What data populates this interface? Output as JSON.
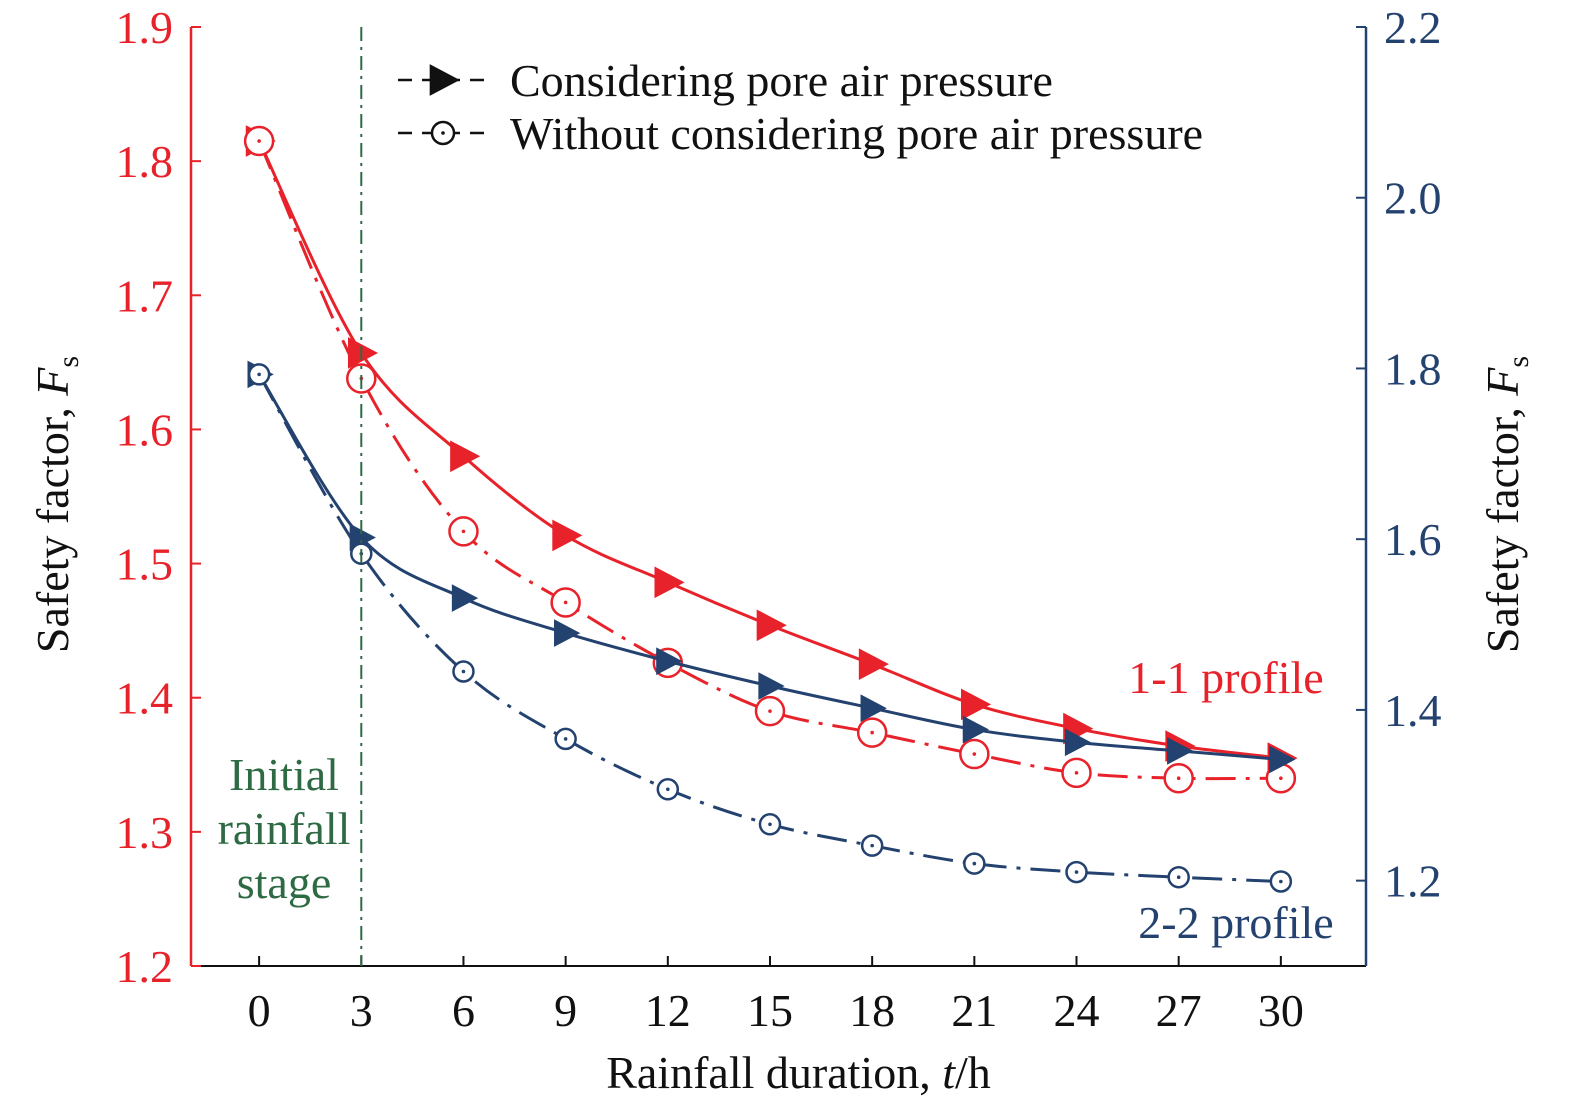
{
  "colors": {
    "red": "#e8222a",
    "blue": "#24426f",
    "green": "#2e6b45",
    "black": "#111111"
  },
  "chart_data": {
    "type": "line",
    "x": [
      0,
      3,
      6,
      9,
      12,
      15,
      18,
      21,
      24,
      27,
      30
    ],
    "x_ticks": [
      "0",
      "3",
      "6",
      "9",
      "12",
      "15",
      "18",
      "21",
      "24",
      "27",
      "30"
    ],
    "xlim": [
      -2,
      32.5
    ],
    "xlabel": "Rainfall duration, t/h",
    "y_left": {
      "label": "Safety factor, Fs",
      "lim": [
        1.2,
        1.9
      ],
      "ticks": [
        "1.2",
        "1.3",
        "1.4",
        "1.5",
        "1.6",
        "1.7",
        "1.8",
        "1.9"
      ]
    },
    "y_right": {
      "label": "Safety factor, Fs",
      "lim": [
        1.1,
        2.2
      ],
      "ticks": [
        "1.2",
        "1.4",
        "1.6",
        "1.8",
        "2.0",
        "2.2"
      ]
    },
    "series": [
      {
        "profile": "1-1",
        "axis": "left",
        "style": "considering",
        "color": "red",
        "values": [
          1.815,
          1.657,
          1.58,
          1.521,
          1.486,
          1.454,
          1.425,
          1.395,
          1.377,
          1.364,
          1.355
        ]
      },
      {
        "profile": "1-1",
        "axis": "left",
        "style": "without",
        "color": "red",
        "values": [
          1.815,
          1.638,
          1.524,
          1.471,
          1.426,
          1.39,
          1.374,
          1.358,
          1.344,
          1.34,
          1.34
        ]
      },
      {
        "profile": "2-2",
        "axis": "right",
        "style": "considering",
        "color": "blue",
        "values": [
          1.793,
          1.602,
          1.531,
          1.49,
          1.457,
          1.428,
          1.402,
          1.377,
          1.362,
          1.352,
          1.342
        ]
      },
      {
        "profile": "2-2",
        "axis": "right",
        "style": "without",
        "color": "blue",
        "values": [
          1.793,
          1.583,
          1.445,
          1.366,
          1.307,
          1.266,
          1.241,
          1.22,
          1.21,
          1.204,
          1.199
        ]
      }
    ],
    "legend": {
      "placement": "top-center",
      "entries": [
        "Considering pore air pressure",
        "Without considering pore air pressure"
      ]
    },
    "annotations": {
      "initial_stage": [
        "Initial",
        "rainfall",
        "stage"
      ],
      "initial_stage_x": 3,
      "profile_1": "1-1 profile",
      "profile_2": "2-2 profile"
    }
  }
}
